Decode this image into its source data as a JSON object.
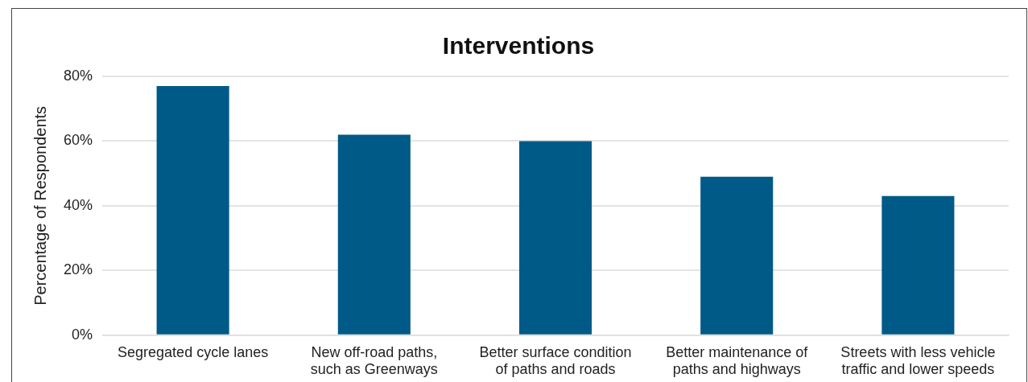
{
  "chart_data": {
    "type": "bar",
    "title": "Interventions",
    "ylabel": "Percentage of Respondents",
    "categories": [
      "Segregated cycle lanes",
      "New off-road paths, such as Greenways",
      "Better surface condition of paths and roads",
      "Better maintenance of paths and highways",
      "Streets with less vehicle traffic and lower speeds"
    ],
    "values": [
      77,
      62,
      60,
      49,
      43
    ],
    "color": "#005a87",
    "ylim": [
      0,
      80
    ],
    "yticks": [
      {
        "value": 0,
        "label": "0%"
      },
      {
        "value": 20,
        "label": "20%"
      },
      {
        "value": 40,
        "label": "40%"
      },
      {
        "value": 60,
        "label": "60%"
      },
      {
        "value": 80,
        "label": "80%"
      }
    ],
    "grid": "y",
    "legend": false
  }
}
